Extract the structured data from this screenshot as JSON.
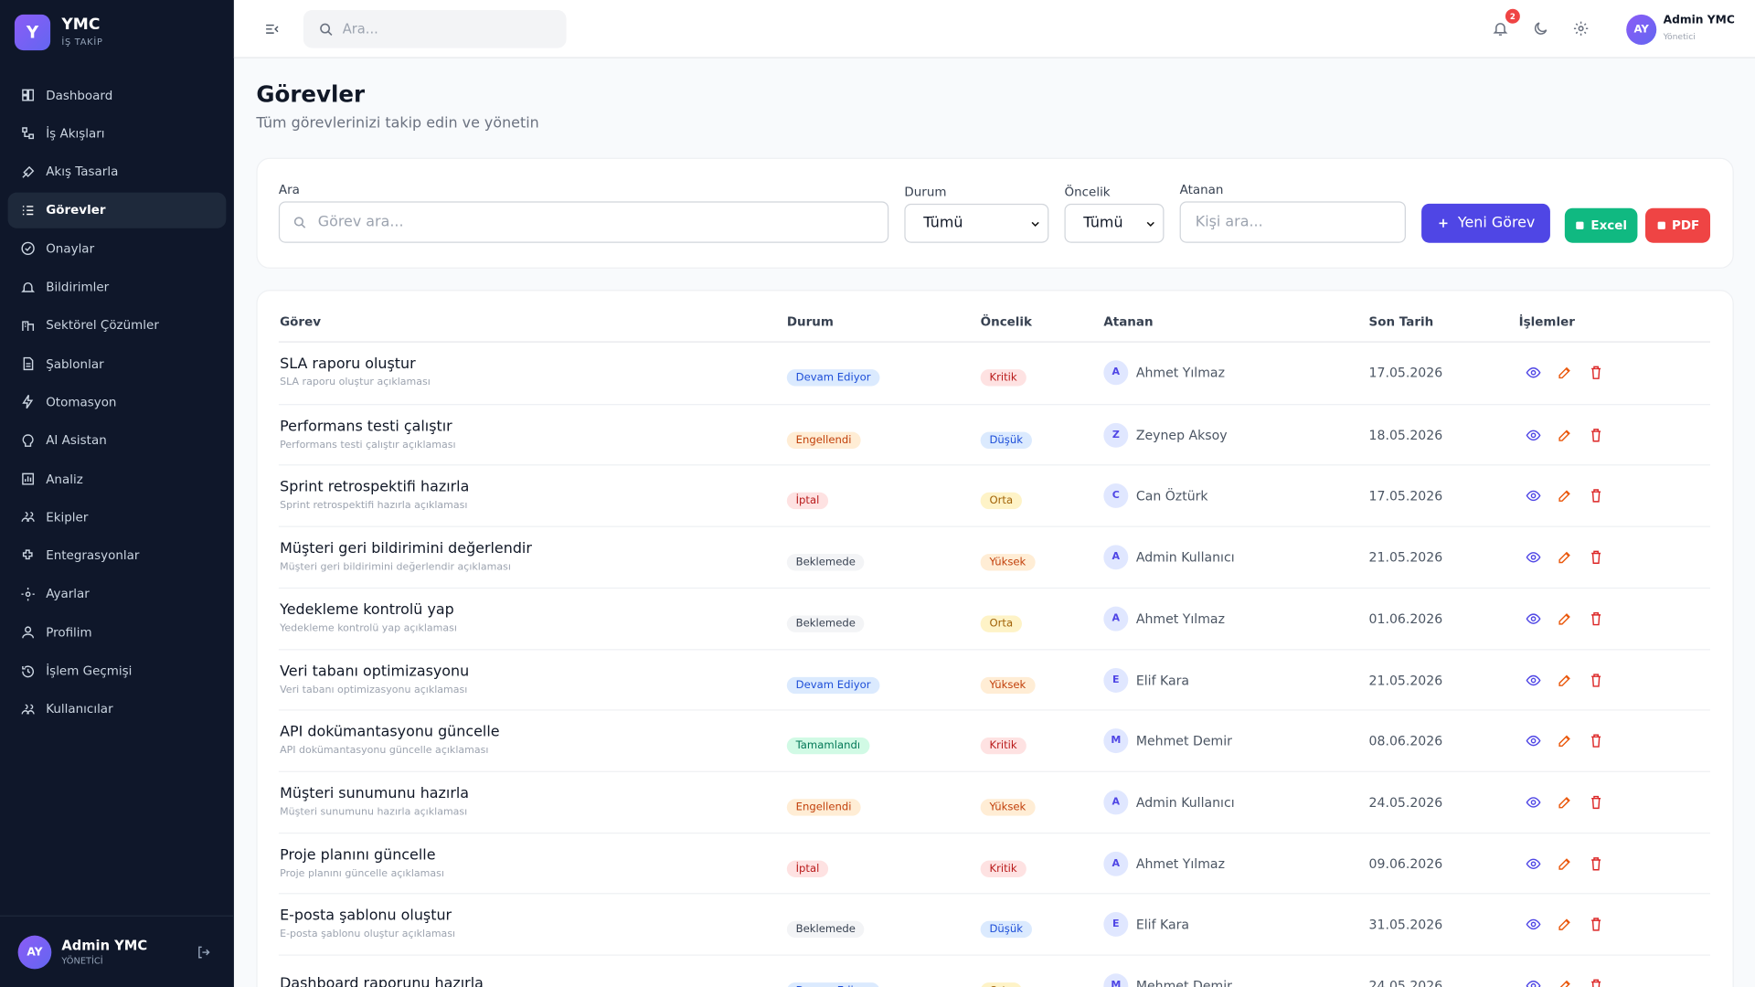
{
  "sidebar": {
    "logo_letter": "Y",
    "brand": "YMC",
    "brand_sub": "İŞ TAKİP",
    "nav": [
      {
        "label": "Dashboard"
      },
      {
        "label": "İş Akışları"
      },
      {
        "label": "Akış Tasarla"
      },
      {
        "label": "Görevler",
        "active": true
      },
      {
        "label": "Onaylar"
      },
      {
        "label": "Bildirimler"
      },
      {
        "label": "Sektörel Çözümler"
      },
      {
        "label": "Şablonlar"
      },
      {
        "label": "Otomasyon"
      },
      {
        "label": "AI Asistan"
      },
      {
        "label": "Analiz"
      },
      {
        "label": "Ekipler"
      },
      {
        "label": "Entegrasyonlar"
      },
      {
        "label": "Ayarlar"
      },
      {
        "label": "Profilim"
      },
      {
        "label": "İşlem Geçmişi"
      },
      {
        "label": "Kullanıcılar"
      }
    ],
    "user": {
      "initials": "AY",
      "name": "Admin YMC",
      "role": "YÖNETİCİ"
    }
  },
  "header": {
    "search_placeholder": "Ara...",
    "notification_count": 2,
    "user": {
      "initials": "AY",
      "name": "Admin YMC",
      "role": "Yönetici"
    }
  },
  "page": {
    "title": "Görevler",
    "subtitle": "Tüm görevlerinizi takip edin ve yönetin"
  },
  "filters": {
    "search_label": "Ara",
    "search_placeholder": "Görev ara...",
    "status_label": "Durum",
    "status_value": "Tümü",
    "priority_label": "Öncelik",
    "priority_value": "Tümü",
    "assignee_label": "Atanan",
    "assignee_placeholder": "Kişi ara...",
    "new_button": "Yeni Görev",
    "excel_button": "Excel",
    "pdf_button": "PDF"
  },
  "table": {
    "columns": [
      "Görev",
      "Durum",
      "Öncelik",
      "Atanan",
      "Son Tarih",
      "İşlemler"
    ],
    "rows": [
      {
        "title": "SLA raporu oluştur",
        "description": "SLA raporu oluştur açıklaması",
        "status": "Devam Ediyor",
        "status_tone": "blue",
        "priority": "Kritik",
        "priority_tone": "red",
        "initial": "A",
        "assignee": "Ahmet Yılmaz",
        "due": "17.05.2026"
      },
      {
        "title": "Performans testi çalıştır",
        "description": "Performans testi çalıştır açıklaması",
        "status": "Engellendi",
        "status_tone": "orange",
        "priority": "Düşük",
        "priority_tone": "blue",
        "initial": "Z",
        "assignee": "Zeynep Aksoy",
        "due": "18.05.2026"
      },
      {
        "title": "Sprint retrospektifi hazırla",
        "description": "Sprint retrospektifi hazırla açıklaması",
        "status": "İptal",
        "status_tone": "red",
        "priority": "Orta",
        "priority_tone": "yellow",
        "initial": "C",
        "assignee": "Can Öztürk",
        "due": "17.05.2026"
      },
      {
        "title": "Müşteri geri bildirimini değerlendir",
        "description": "Müşteri geri bildirimini değerlendir açıklaması",
        "status": "Beklemede",
        "status_tone": "gray",
        "priority": "Yüksek",
        "priority_tone": "orange",
        "initial": "A",
        "assignee": "Admin Kullanıcı",
        "due": "21.05.2026"
      },
      {
        "title": "Yedekleme kontrolü yap",
        "description": "Yedekleme kontrolü yap açıklaması",
        "status": "Beklemede",
        "status_tone": "gray",
        "priority": "Orta",
        "priority_tone": "yellow",
        "initial": "A",
        "assignee": "Ahmet Yılmaz",
        "due": "01.06.2026"
      },
      {
        "title": "Veri tabanı optimizasyonu",
        "description": "Veri tabanı optimizasyonu açıklaması",
        "status": "Devam Ediyor",
        "status_tone": "blue",
        "priority": "Yüksek",
        "priority_tone": "orange",
        "initial": "E",
        "assignee": "Elif Kara",
        "due": "21.05.2026"
      },
      {
        "title": "API dokümantasyonu güncelle",
        "description": "API dokümantasyonu güncelle açıklaması",
        "status": "Tamamlandı",
        "status_tone": "green",
        "priority": "Kritik",
        "priority_tone": "red",
        "initial": "M",
        "assignee": "Mehmet Demir",
        "due": "08.06.2026"
      },
      {
        "title": "Müşteri sunumunu hazırla",
        "description": "Müşteri sunumunu hazırla açıklaması",
        "status": "Engellendi",
        "status_tone": "orange",
        "priority": "Yüksek",
        "priority_tone": "orange",
        "initial": "A",
        "assignee": "Admin Kullanıcı",
        "due": "24.05.2026"
      },
      {
        "title": "Proje planını güncelle",
        "description": "Proje planını güncelle açıklaması",
        "status": "İptal",
        "status_tone": "red",
        "priority": "Kritik",
        "priority_tone": "red",
        "initial": "A",
        "assignee": "Ahmet Yılmaz",
        "due": "09.06.2026"
      },
      {
        "title": "E-posta şablonu oluştur",
        "description": "E-posta şablonu oluştur açıklaması",
        "status": "Beklemede",
        "status_tone": "gray",
        "priority": "Düşük",
        "priority_tone": "blue",
        "initial": "E",
        "assignee": "Elif Kara",
        "due": "31.05.2026"
      },
      {
        "title": "Dashboard raporunu hazırla",
        "status": "Devam Ediyor",
        "status_tone": "blue",
        "priority": "Orta",
        "priority_tone": "yellow",
        "initial": "M",
        "assignee": "Mehmet Demir",
        "due": "24.05.2026"
      }
    ]
  }
}
